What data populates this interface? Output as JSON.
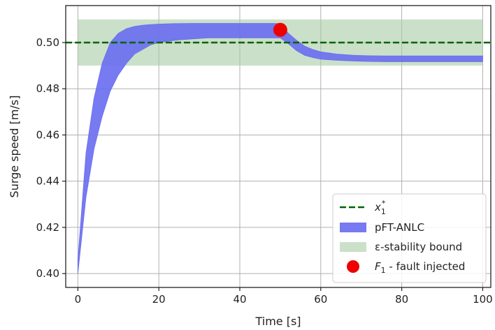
{
  "chart_data": {
    "type": "area",
    "xlabel": "Time [s]",
    "ylabel": "Surge speed [m/s]",
    "xlim": [
      -3,
      102
    ],
    "ylim": [
      0.394,
      0.516
    ],
    "xticks": [
      0,
      20,
      40,
      60,
      80,
      100
    ],
    "yticks": [
      0.4,
      0.42,
      0.44,
      0.46,
      0.48,
      0.5
    ],
    "xtick_labels": [
      "0",
      "20",
      "40",
      "60",
      "80",
      "100"
    ],
    "ytick_labels": [
      "0.40",
      "0.42",
      "0.44",
      "0.46",
      "0.48",
      "0.50"
    ],
    "grid": true,
    "legend_placement": "lower-right",
    "reference": {
      "name": "x1*",
      "name_main": "x",
      "name_sub": "1",
      "name_sup": "*",
      "value": 0.5,
      "color": "#006400",
      "style": "dashed"
    },
    "stability_bound": {
      "name": "ε-stability bound",
      "lower": 0.49,
      "upper": 0.51,
      "x_start": 0,
      "x_end": 100,
      "color": "#a8cba4"
    },
    "band": {
      "name": "pFT-ANLC",
      "color": "#6b6ff0",
      "x": [
        0,
        2,
        4,
        6,
        8,
        10,
        12,
        14,
        16,
        18,
        20,
        24,
        28,
        32,
        36,
        40,
        44,
        48,
        50,
        52,
        54,
        56,
        58,
        60,
        64,
        68,
        72,
        76,
        80,
        90,
        100
      ],
      "lower": [
        0.4,
        0.433,
        0.454,
        0.468,
        0.479,
        0.486,
        0.491,
        0.495,
        0.497,
        0.499,
        0.5,
        0.501,
        0.5015,
        0.502,
        0.502,
        0.502,
        0.502,
        0.502,
        0.502,
        0.4995,
        0.4965,
        0.4945,
        0.4935,
        0.4928,
        0.4923,
        0.492,
        0.4918,
        0.4917,
        0.4917,
        0.4917,
        0.4917
      ],
      "upper": [
        0.406,
        0.452,
        0.476,
        0.491,
        0.5,
        0.504,
        0.506,
        0.507,
        0.5075,
        0.5078,
        0.508,
        0.5082,
        0.5083,
        0.5083,
        0.5083,
        0.5083,
        0.5083,
        0.5083,
        0.5082,
        0.504,
        0.501,
        0.4985,
        0.497,
        0.496,
        0.495,
        0.4945,
        0.4943,
        0.4942,
        0.4942,
        0.4942,
        0.4942
      ]
    },
    "fault": {
      "name_main": "F",
      "name_sub": "1",
      "name_rest": " - fault injected",
      "x": 50,
      "y": 0.5055,
      "color": "#ee0000"
    }
  }
}
